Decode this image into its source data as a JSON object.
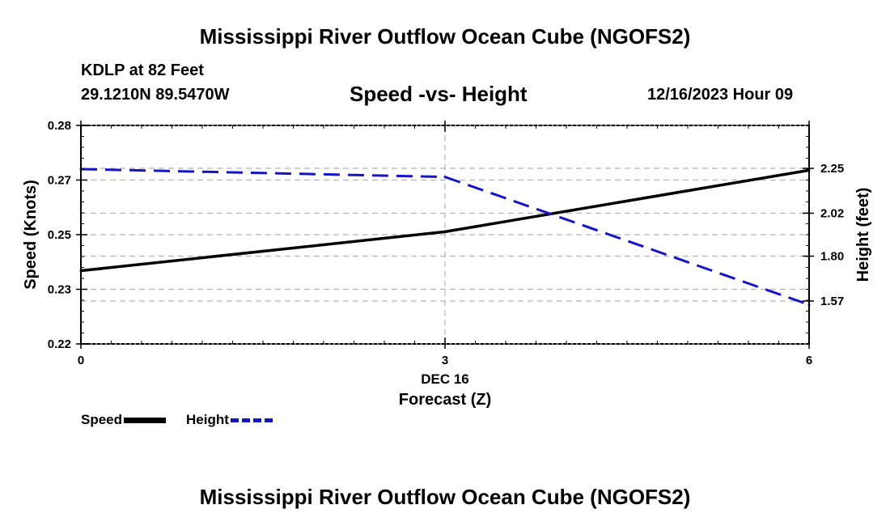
{
  "header": {
    "title": "Mississippi River Outflow Ocean Cube (NGOFS2)",
    "station": "KDLP at 82 Feet",
    "coords": "29.1210N  89.5470W",
    "subtitle": "Speed -vs- Height",
    "datetime": "12/16/2023 Hour 09"
  },
  "footer": {
    "title": "Mississippi River Outflow Ocean Cube (NGOFS2)"
  },
  "colors": {
    "speed": "#000000",
    "height": "#1515c8",
    "grid": "#b4b4b4"
  },
  "chart_data": {
    "type": "line",
    "x": [
      0,
      3,
      6
    ],
    "xlim": [
      0,
      6
    ],
    "xticks": [
      "0",
      "3",
      "6"
    ],
    "xlabel_date": "DEC 16",
    "xlabel": "Forecast (Z)",
    "ylabel_left": "Speed (Knots)",
    "ylabel_right": "Height (feet)",
    "ylim_left": [
      0.22,
      0.28
    ],
    "yticks_left": [
      "0.22",
      "0.23",
      "0.25",
      "0.27",
      "0.28"
    ],
    "yticks_left_values": [
      0.22,
      0.235,
      0.25,
      0.265,
      0.28
    ],
    "ylim_right": [
      1.35,
      2.47
    ],
    "yticks_right": [
      "1.57",
      "1.80",
      "2.02",
      "2.25"
    ],
    "yticks_right_values": [
      1.57,
      1.8,
      2.02,
      2.25
    ],
    "series": [
      {
        "name": "Speed",
        "axis": "left",
        "style": "solid",
        "values": [
          0.2401,
          0.2508,
          0.2677
        ]
      },
      {
        "name": "Height",
        "axis": "right",
        "style": "dashed",
        "values": [
          2.246,
          2.206,
          1.551
        ]
      }
    ]
  }
}
